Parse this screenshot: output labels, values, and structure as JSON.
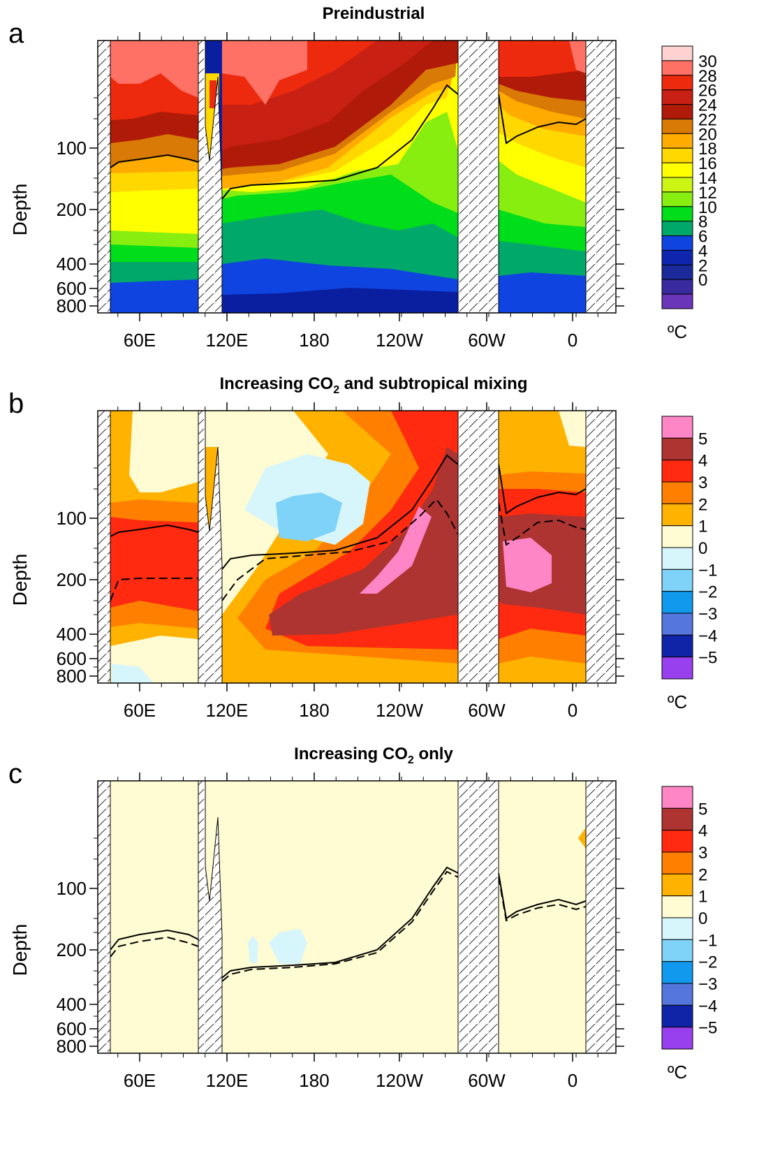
{
  "colors": {
    "temperature": [
      "#6a35b8",
      "#3a2aa0",
      "#1a2a9a",
      "#0e26ae",
      "#1044e0",
      "#00a86a",
      "#00dd1a",
      "#88ee10",
      "#ccf514",
      "#ffff00",
      "#ffd800",
      "#ffab00",
      "#d87a05",
      "#b01a08",
      "#c82012",
      "#ee2a0e",
      "#ff7065",
      "#ffd2d2"
    ],
    "anomaly": [
      "#9940ee",
      "#1024a8",
      "#5577dd",
      "#1199ee",
      "#7fd3f9",
      "#d6f6fc",
      "#fffbd2",
      "#ffb200",
      "#ff8000",
      "#ff2a10",
      "#ad3430",
      "#ff86c6"
    ]
  },
  "chart_data": [
    {
      "panel": "a",
      "title": "Preindustrial",
      "type": "heatmap",
      "ylabel": "Depth",
      "x_ticks": [
        "60E",
        "120E",
        "180",
        "120W",
        "60W",
        "0"
      ],
      "y_ticks": [
        "100",
        "200",
        "400",
        "600",
        "800"
      ],
      "colorbar": {
        "labels": [
          "30",
          "28",
          "26",
          "24",
          "22",
          "20",
          "18",
          "16",
          "14",
          "12",
          "10",
          "8",
          "6",
          "4",
          "2",
          "0"
        ],
        "unit": "ºC"
      },
      "lines": [
        "solid"
      ]
    },
    {
      "panel": "b",
      "title": "Increasing CO",
      "title_sub": "2",
      "title_tail": " and subtropical mixing",
      "type": "heatmap",
      "ylabel": "Depth",
      "x_ticks": [
        "60E",
        "120E",
        "180",
        "120W",
        "60W",
        "0"
      ],
      "y_ticks": [
        "100",
        "200",
        "400",
        "600",
        "800"
      ],
      "colorbar": {
        "labels": [
          "5",
          "4",
          "3",
          "2",
          "1",
          "0",
          "−1",
          "−2",
          "−3",
          "−4",
          "−5"
        ],
        "unit": "ºC"
      },
      "lines": [
        "solid",
        "dashed"
      ]
    },
    {
      "panel": "c",
      "title": "Increasing CO",
      "title_sub": "2",
      "title_tail": " only",
      "type": "heatmap",
      "ylabel": "Depth",
      "x_ticks": [
        "60E",
        "120E",
        "180",
        "120W",
        "60W",
        "0"
      ],
      "y_ticks": [
        "100",
        "200",
        "400",
        "600",
        "800"
      ],
      "colorbar": {
        "labels": [
          "5",
          "4",
          "3",
          "2",
          "1",
          "0",
          "−1",
          "−2",
          "−3",
          "−4",
          "−5"
        ],
        "unit": "ºC"
      },
      "lines": [
        "solid",
        "dashed"
      ]
    }
  ]
}
